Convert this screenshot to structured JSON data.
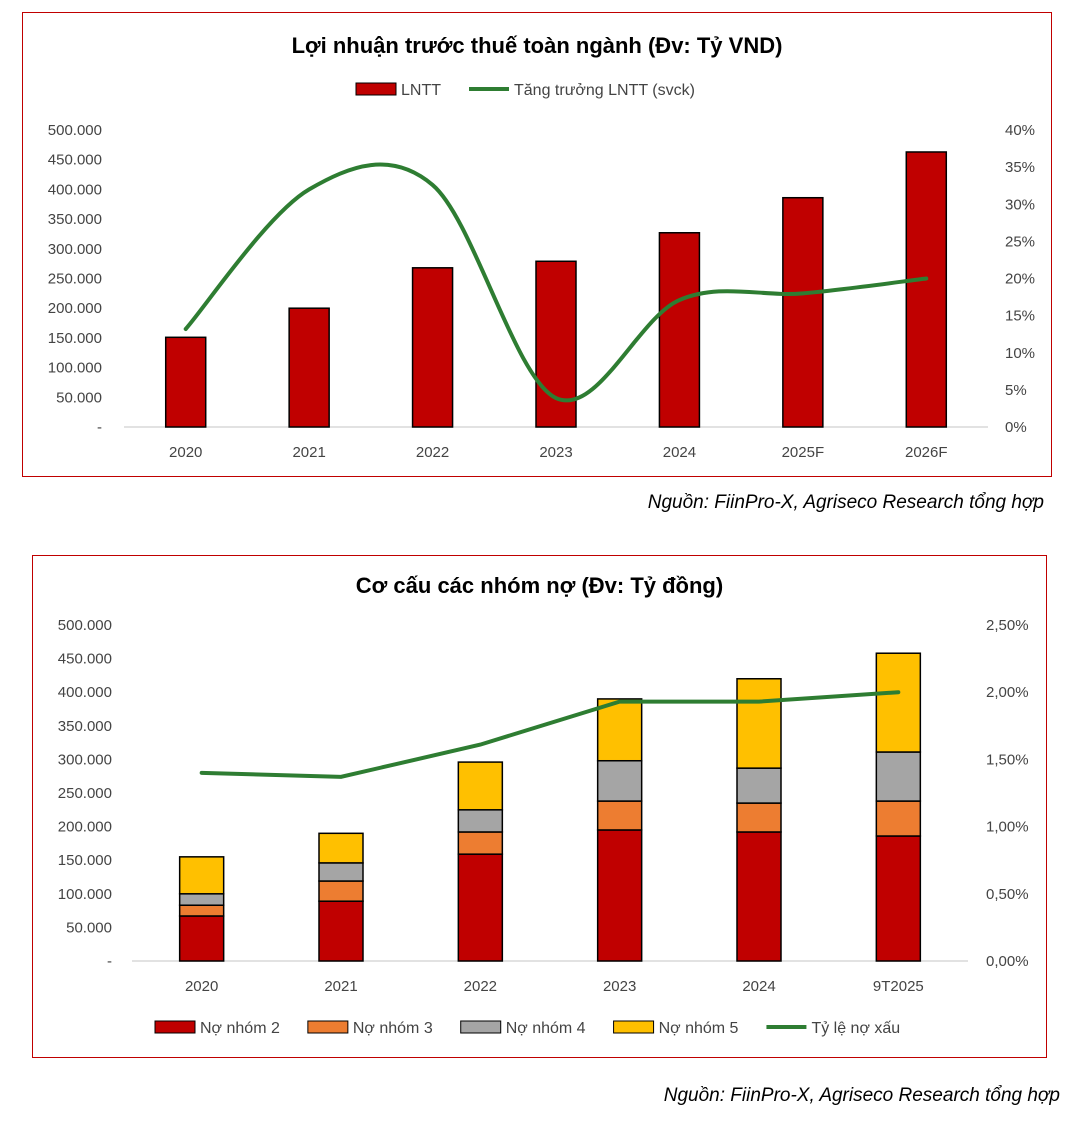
{
  "chart_data": [
    {
      "type": "bar+line",
      "title": "Lợi nhuận trước thuế toàn ngành (Đv: Tỷ VND)",
      "categories": [
        "2020",
        "2021",
        "2022",
        "2023",
        "2024",
        "2025F",
        "2026F"
      ],
      "series": [
        {
          "name": "LNTT",
          "type": "bar",
          "axis": "left",
          "color": "#c00000",
          "values": [
            151000,
            200000,
            268000,
            279000,
            327000,
            386000,
            463000
          ]
        },
        {
          "name": "Tăng trưởng LNTT (svck)",
          "type": "line",
          "smooth": true,
          "axis": "right",
          "color": "#2e7d32",
          "values": [
            13.2,
            32.0,
            32.6,
            3.9,
            17.1,
            18.0,
            20.0
          ]
        }
      ],
      "left_ticks": [
        "-",
        "50.000",
        "100.000",
        "150.000",
        "200.000",
        "250.000",
        "300.000",
        "350.000",
        "400.000",
        "450.000",
        "500.000"
      ],
      "right_ticks": [
        "0%",
        "5%",
        "10%",
        "15%",
        "20%",
        "25%",
        "30%",
        "35%",
        "40%"
      ],
      "ylim": [
        0,
        500000
      ],
      "y2lim": [
        0,
        40
      ],
      "legend_position": "top",
      "grid": false
    },
    {
      "type": "stacked-bar+line",
      "title": "Cơ cấu các nhóm nợ (Đv: Tỷ đồng)",
      "categories": [
        "2020",
        "2021",
        "2022",
        "2023",
        "2024",
        "9T2025"
      ],
      "series": [
        {
          "name": "Nợ nhóm 2",
          "type": "bar",
          "axis": "left",
          "color": "#c00000",
          "values": [
            67000,
            89000,
            159000,
            195000,
            192000,
            186000
          ]
        },
        {
          "name": "Nợ nhóm 3",
          "type": "bar",
          "axis": "left",
          "color": "#ed7d31",
          "values": [
            16000,
            30000,
            33000,
            43000,
            43000,
            52000
          ]
        },
        {
          "name": "Nợ nhóm 4",
          "type": "bar",
          "axis": "left",
          "color": "#a5a5a5",
          "values": [
            17000,
            27000,
            33000,
            60000,
            52000,
            73000
          ]
        },
        {
          "name": "Nợ nhóm 5",
          "type": "bar",
          "axis": "left",
          "color": "#ffc000",
          "values": [
            55000,
            44000,
            71000,
            92000,
            133000,
            147000
          ]
        },
        {
          "name": "Tỷ lệ nợ xấu",
          "type": "line",
          "axis": "right",
          "color": "#2e7d32",
          "values": [
            1.4,
            1.37,
            1.61,
            1.93,
            1.93,
            2.0
          ]
        }
      ],
      "left_ticks": [
        "-",
        "50.000",
        "100.000",
        "150.000",
        "200.000",
        "250.000",
        "300.000",
        "350.000",
        "400.000",
        "450.000",
        "500.000"
      ],
      "right_ticks": [
        "0,00%",
        "0,50%",
        "1,00%",
        "1,50%",
        "2,00%",
        "2,50%"
      ],
      "ylim": [
        0,
        500000
      ],
      "y2lim": [
        0,
        2.5
      ],
      "legend_position": "bottom",
      "grid": false
    }
  ],
  "sources": [
    "Nguồn: FiinPro-X, Agriseco Research tổng hợp",
    "Nguồn: FiinPro-X, Agriseco Research tổng hợp"
  ]
}
